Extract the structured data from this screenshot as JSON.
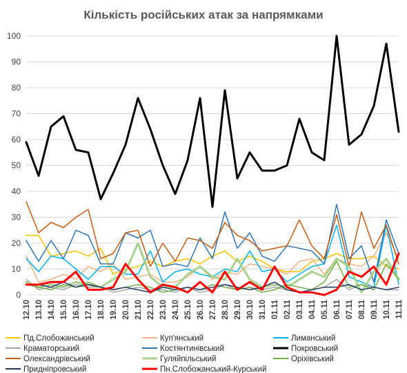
{
  "chart_data": {
    "type": "line",
    "title": "Кількість російських атак за напрямками",
    "ylim": [
      0,
      100
    ],
    "yticks": [
      0,
      10,
      20,
      30,
      40,
      50,
      60,
      70,
      80,
      90,
      100
    ],
    "grid": true,
    "legend_position": "bottom",
    "x": [
      "12.10",
      "13.10",
      "14.10",
      "15.10",
      "16.10",
      "17.10",
      "18.10",
      "19.10",
      "20.10",
      "21.10",
      "22.10",
      "23.10",
      "24.10",
      "25.10",
      "26.10",
      "27.10",
      "28.10",
      "29.10",
      "30.10",
      "31.10",
      "01.11",
      "02.11",
      "03.11",
      "04.11",
      "05.11",
      "06.11",
      "07.11",
      "08.11",
      "09.11",
      "10.11",
      "11.11"
    ],
    "series": [
      {
        "name": "Пд.Слобожанський",
        "color": "#ffc000",
        "width": 1.5,
        "values": [
          23,
          23,
          15,
          16,
          17,
          15,
          18,
          8,
          10,
          11,
          13,
          11,
          13,
          14,
          12,
          15,
          17,
          13,
          15,
          13,
          10,
          9,
          9,
          13,
          14,
          16,
          14,
          14,
          15,
          11,
          10
        ]
      },
      {
        "name": "Куп'янський",
        "color": "#f4b183",
        "width": 1.5,
        "values": [
          15,
          5,
          6,
          8,
          6,
          11,
          9,
          12,
          6,
          7,
          8,
          5,
          5,
          7,
          11,
          6,
          9,
          8,
          12,
          11,
          10,
          8,
          13,
          14,
          8,
          14,
          12,
          11,
          15,
          24,
          14
        ]
      },
      {
        "name": "Лиманський",
        "color": "#00b0f0",
        "width": 1.5,
        "values": [
          14,
          9,
          15,
          14,
          10,
          6,
          11,
          11,
          8,
          8,
          17,
          5,
          9,
          10,
          8,
          7,
          10,
          9,
          17,
          9,
          10,
          5,
          8,
          11,
          12,
          27,
          7,
          5,
          3,
          27,
          4
        ]
      },
      {
        "name": "Краматорський",
        "color": "#a5a5a5",
        "width": 1.5,
        "values": [
          6,
          2,
          3,
          2,
          4,
          3,
          3,
          1,
          2,
          3,
          2,
          2,
          1,
          3,
          1,
          2,
          4,
          2,
          3,
          2,
          3,
          2,
          1,
          2,
          3,
          6,
          2,
          4,
          3,
          2,
          2
        ]
      },
      {
        "name": "Костянтинівський",
        "color": "#2e75b6",
        "width": 1.5,
        "values": [
          21,
          13,
          21,
          14,
          25,
          23,
          12,
          12,
          24,
          22,
          25,
          11,
          12,
          11,
          22,
          14,
          32,
          18,
          24,
          15,
          13,
          19,
          18,
          17,
          12,
          35,
          14,
          19,
          5,
          29,
          16
        ]
      },
      {
        "name": "Покровський",
        "color": "#000000",
        "width": 3,
        "values": [
          59,
          46,
          65,
          69,
          56,
          55,
          37,
          47,
          58,
          76,
          64,
          50,
          39,
          52,
          76,
          34,
          79,
          45,
          55,
          48,
          48,
          50,
          68,
          55,
          52,
          100,
          58,
          62,
          73,
          97,
          63
        ]
      },
      {
        "name": "Олександрівський",
        "color": "#c55a11",
        "width": 1.5,
        "values": [
          36,
          24,
          28,
          26,
          30,
          33,
          14,
          16,
          24,
          25,
          11,
          20,
          13,
          22,
          21,
          18,
          28,
          23,
          21,
          17,
          18,
          19,
          29,
          19,
          14,
          31,
          11,
          32,
          18,
          27,
          12
        ]
      },
      {
        "name": "Гуляйпільський",
        "color": "#a9d18e",
        "width": 3,
        "values": [
          5,
          3,
          4,
          3,
          5,
          4,
          3,
          6,
          9,
          20,
          7,
          3,
          3,
          8,
          11,
          7,
          6,
          14,
          6,
          3,
          4,
          3,
          6,
          9,
          7,
          14,
          11,
          1,
          9,
          14,
          6
        ]
      },
      {
        "name": "Оріхівський",
        "color": "#70ad47",
        "width": 1.5,
        "values": [
          4,
          3,
          2,
          4,
          3,
          5,
          3,
          2,
          3,
          4,
          3,
          1,
          2,
          3,
          2,
          4,
          3,
          2,
          3,
          1,
          2,
          4,
          3,
          2,
          5,
          13,
          3,
          4,
          2,
          12,
          6
        ]
      },
      {
        "name": "Придніпровський",
        "color": "#1f3864",
        "width": 1.5,
        "values": [
          4,
          4,
          3,
          5,
          3,
          4,
          3,
          2,
          3,
          2,
          1,
          3,
          2,
          3,
          2,
          3,
          4,
          3,
          2,
          3,
          5,
          2,
          1,
          2,
          3,
          3,
          4,
          2,
          3,
          2,
          3
        ]
      },
      {
        "name": "Пн.Слобожанський-Курський",
        "color": "#ff0000",
        "width": 3,
        "values": [
          4,
          4,
          5,
          5,
          9,
          2,
          2,
          3,
          12,
          6,
          1,
          4,
          3,
          1,
          5,
          1,
          9,
          2,
          5,
          2,
          11,
          3,
          1,
          1,
          0,
          2,
          9,
          7,
          11,
          4,
          16
        ]
      }
    ]
  }
}
